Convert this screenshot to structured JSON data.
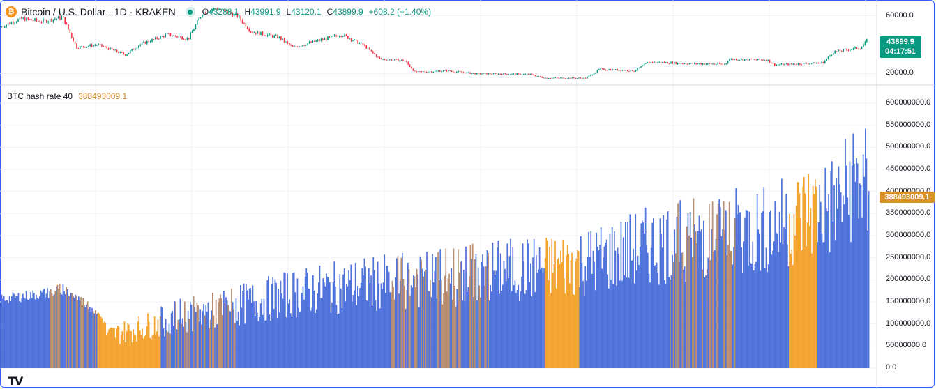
{
  "header": {
    "symbol_title": "Bitcoin / U.S. Dollar · 1D · KRAKEN",
    "logo_glyph": "₿",
    "open_label": "O",
    "open": "43288.1",
    "high_label": "H",
    "high": "43991.9",
    "low_label": "L",
    "low": "43120.1",
    "close_label": "C",
    "close": "43899.9",
    "change": "+608.2 (+1.40%)"
  },
  "price_tag": {
    "value": "43899.9",
    "countdown": "04:17:51"
  },
  "indicator": {
    "name": "BTC hash rate",
    "length": "40",
    "value": "388493009.1"
  },
  "colors": {
    "up": "#089981",
    "down": "#f23645",
    "hash_blue": "#3d64d8",
    "hash_orange": "#f39b1a",
    "accent": "#2962ff"
  },
  "chart_data": [
    {
      "type": "candlestick",
      "title": "Bitcoin / U.S. Dollar · 1D · KRAKEN",
      "ylim": [
        13000,
        67000
      ],
      "y_ticks": [
        "60000.0",
        "20000.0"
      ],
      "close_series_approx": [
        {
          "x": 0,
          "y": 52000
        },
        {
          "x": 30,
          "y": 58000
        },
        {
          "x": 60,
          "y": 56000
        },
        {
          "x": 90,
          "y": 59000
        },
        {
          "x": 110,
          "y": 38000
        },
        {
          "x": 140,
          "y": 40000
        },
        {
          "x": 180,
          "y": 33000
        },
        {
          "x": 200,
          "y": 40000
        },
        {
          "x": 240,
          "y": 47000
        },
        {
          "x": 270,
          "y": 44000
        },
        {
          "x": 290,
          "y": 62000
        },
        {
          "x": 310,
          "y": 65000
        },
        {
          "x": 340,
          "y": 60000
        },
        {
          "x": 360,
          "y": 49000
        },
        {
          "x": 400,
          "y": 45000
        },
        {
          "x": 420,
          "y": 38000
        },
        {
          "x": 450,
          "y": 42000
        },
        {
          "x": 490,
          "y": 47000
        },
        {
          "x": 520,
          "y": 40000
        },
        {
          "x": 545,
          "y": 30000
        },
        {
          "x": 580,
          "y": 29000
        },
        {
          "x": 595,
          "y": 21000
        },
        {
          "x": 640,
          "y": 22000
        },
        {
          "x": 680,
          "y": 20000
        },
        {
          "x": 760,
          "y": 19500
        },
        {
          "x": 780,
          "y": 17000
        },
        {
          "x": 840,
          "y": 16800
        },
        {
          "x": 860,
          "y": 23000
        },
        {
          "x": 910,
          "y": 22000
        },
        {
          "x": 930,
          "y": 28000
        },
        {
          "x": 980,
          "y": 27000
        },
        {
          "x": 1040,
          "y": 26500
        },
        {
          "x": 1045,
          "y": 30000
        },
        {
          "x": 1100,
          "y": 29500
        },
        {
          "x": 1110,
          "y": 26000
        },
        {
          "x": 1180,
          "y": 27500
        },
        {
          "x": 1195,
          "y": 35000
        },
        {
          "x": 1235,
          "y": 38000
        },
        {
          "x": 1245,
          "y": 43900
        }
      ]
    },
    {
      "type": "area",
      "title": "BTC hash rate 40",
      "ylim": [
        0,
        600000000
      ],
      "y_ticks": [
        "600000000.0",
        "550000000.0",
        "500000000.0",
        "450000000.0",
        "400000000.0",
        "350000000.0",
        "300000000.0",
        "250000000.0",
        "200000000.0",
        "150000000.0",
        "100000000.0",
        "50000000.0",
        "0.0"
      ],
      "series_approx": [
        {
          "x": 0,
          "y": 160000000
        },
        {
          "x": 70,
          "y": 175000000
        },
        {
          "x": 90,
          "y": 185000000
        },
        {
          "x": 140,
          "y": 130000000
        },
        {
          "x": 155,
          "y": 90000000
        },
        {
          "x": 210,
          "y": 115000000
        },
        {
          "x": 260,
          "y": 145000000
        },
        {
          "x": 300,
          "y": 155000000
        },
        {
          "x": 360,
          "y": 180000000
        },
        {
          "x": 420,
          "y": 205000000
        },
        {
          "x": 520,
          "y": 230000000
        },
        {
          "x": 600,
          "y": 240000000
        },
        {
          "x": 700,
          "y": 265000000
        },
        {
          "x": 780,
          "y": 275000000
        },
        {
          "x": 860,
          "y": 300000000
        },
        {
          "x": 920,
          "y": 330000000
        },
        {
          "x": 1000,
          "y": 360000000
        },
        {
          "x": 1100,
          "y": 380000000
        },
        {
          "x": 1160,
          "y": 430000000
        },
        {
          "x": 1200,
          "y": 450000000
        },
        {
          "x": 1225,
          "y": 520000000
        },
        {
          "x": 1240,
          "y": 500000000
        },
        {
          "x": 1245,
          "y": 388493009
        }
      ],
      "color_bands": [
        {
          "from": 0,
          "to": 70,
          "color": "blue"
        },
        {
          "from": 70,
          "to": 140,
          "color": "mixed"
        },
        {
          "from": 140,
          "to": 230,
          "color": "orange"
        },
        {
          "from": 230,
          "to": 340,
          "color": "mixed"
        },
        {
          "from": 340,
          "to": 560,
          "color": "blue"
        },
        {
          "from": 560,
          "to": 700,
          "color": "mixed"
        },
        {
          "from": 700,
          "to": 780,
          "color": "blue"
        },
        {
          "from": 780,
          "to": 830,
          "color": "orange"
        },
        {
          "from": 830,
          "to": 960,
          "color": "blue"
        },
        {
          "from": 960,
          "to": 1060,
          "color": "mixed"
        },
        {
          "from": 1060,
          "to": 1130,
          "color": "blue"
        },
        {
          "from": 1130,
          "to": 1170,
          "color": "orange"
        },
        {
          "from": 1170,
          "to": 1245,
          "color": "blue"
        }
      ]
    }
  ]
}
